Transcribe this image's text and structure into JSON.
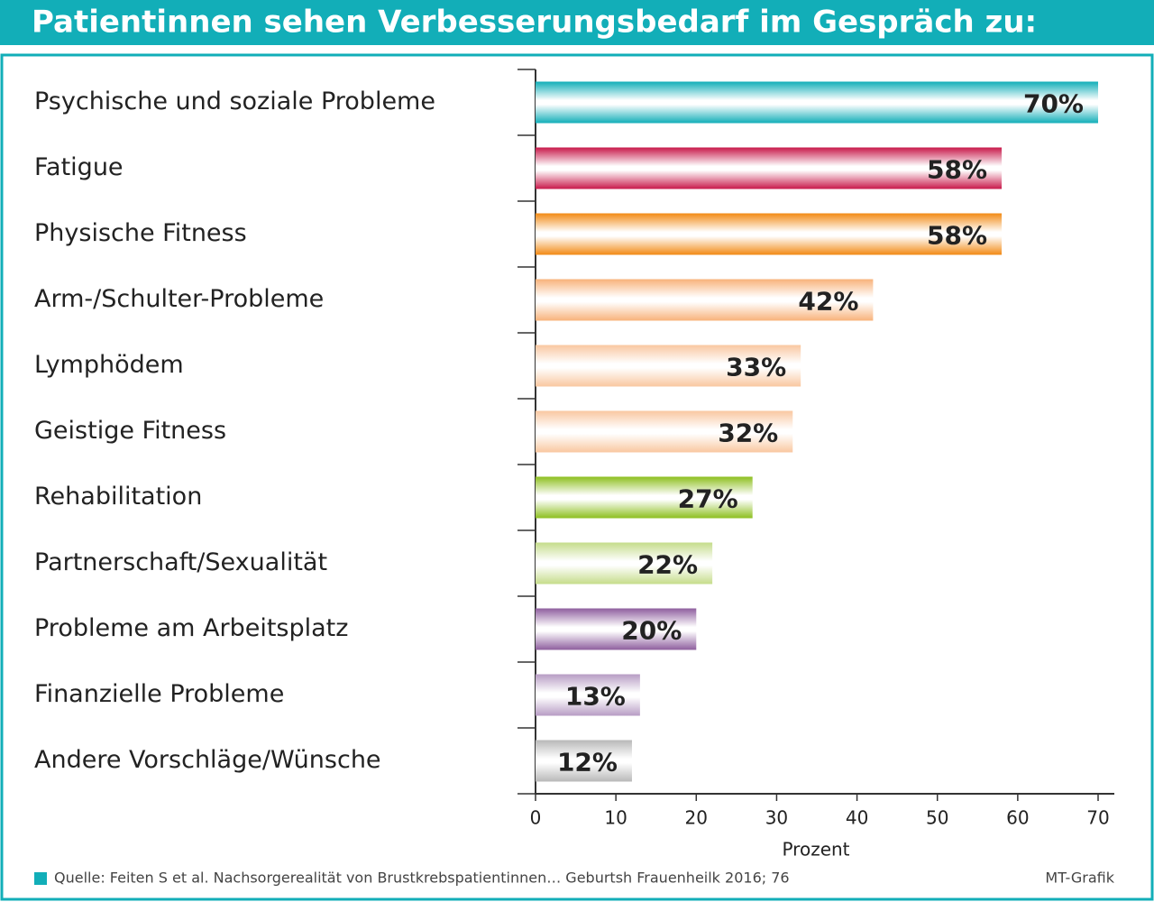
{
  "chart_data": {
    "type": "hbar",
    "title": "Patientinnen sehen Verbesserungsbedarf im Gespräch zu:",
    "categories": [
      "Psychische und soziale Probleme",
      "Fatigue",
      "Physische Fitness",
      "Arm-/Schulter-Probleme",
      "Lymphödem",
      "Geistige Fitness",
      "Rehabilitation",
      "Partnerschaft/Sexualität",
      "Probleme am Arbeitsplatz",
      "Finanzielle Probleme",
      "Andere Vorschläge/Wünsche"
    ],
    "values": [
      70,
      58,
      58,
      42,
      33,
      32,
      27,
      22,
      20,
      13,
      12
    ],
    "value_labels": [
      "70%",
      "58%",
      "58%",
      "42%",
      "33%",
      "32%",
      "27%",
      "22%",
      "20%",
      "13%",
      "12%"
    ],
    "colors": [
      "#12aeb8",
      "#c8194a",
      "#f28a14",
      "#f8b27a",
      "#f9c7a0",
      "#f9c7a0",
      "#8dbf1f",
      "#c5dc8a",
      "#8e5e9e",
      "#b79cc4",
      "#b8b8b8"
    ],
    "xlabel": "Prozent",
    "xlim": [
      0,
      70
    ],
    "xticks": [
      0,
      10,
      20,
      30,
      40,
      50,
      60,
      70
    ],
    "source": "Quelle: Feiten S et al. Nachsorgerealität von Brustkrebspatientinnen… Geburtsh Frauenheilk 2016; 76",
    "credit": "MT-Grafik"
  }
}
